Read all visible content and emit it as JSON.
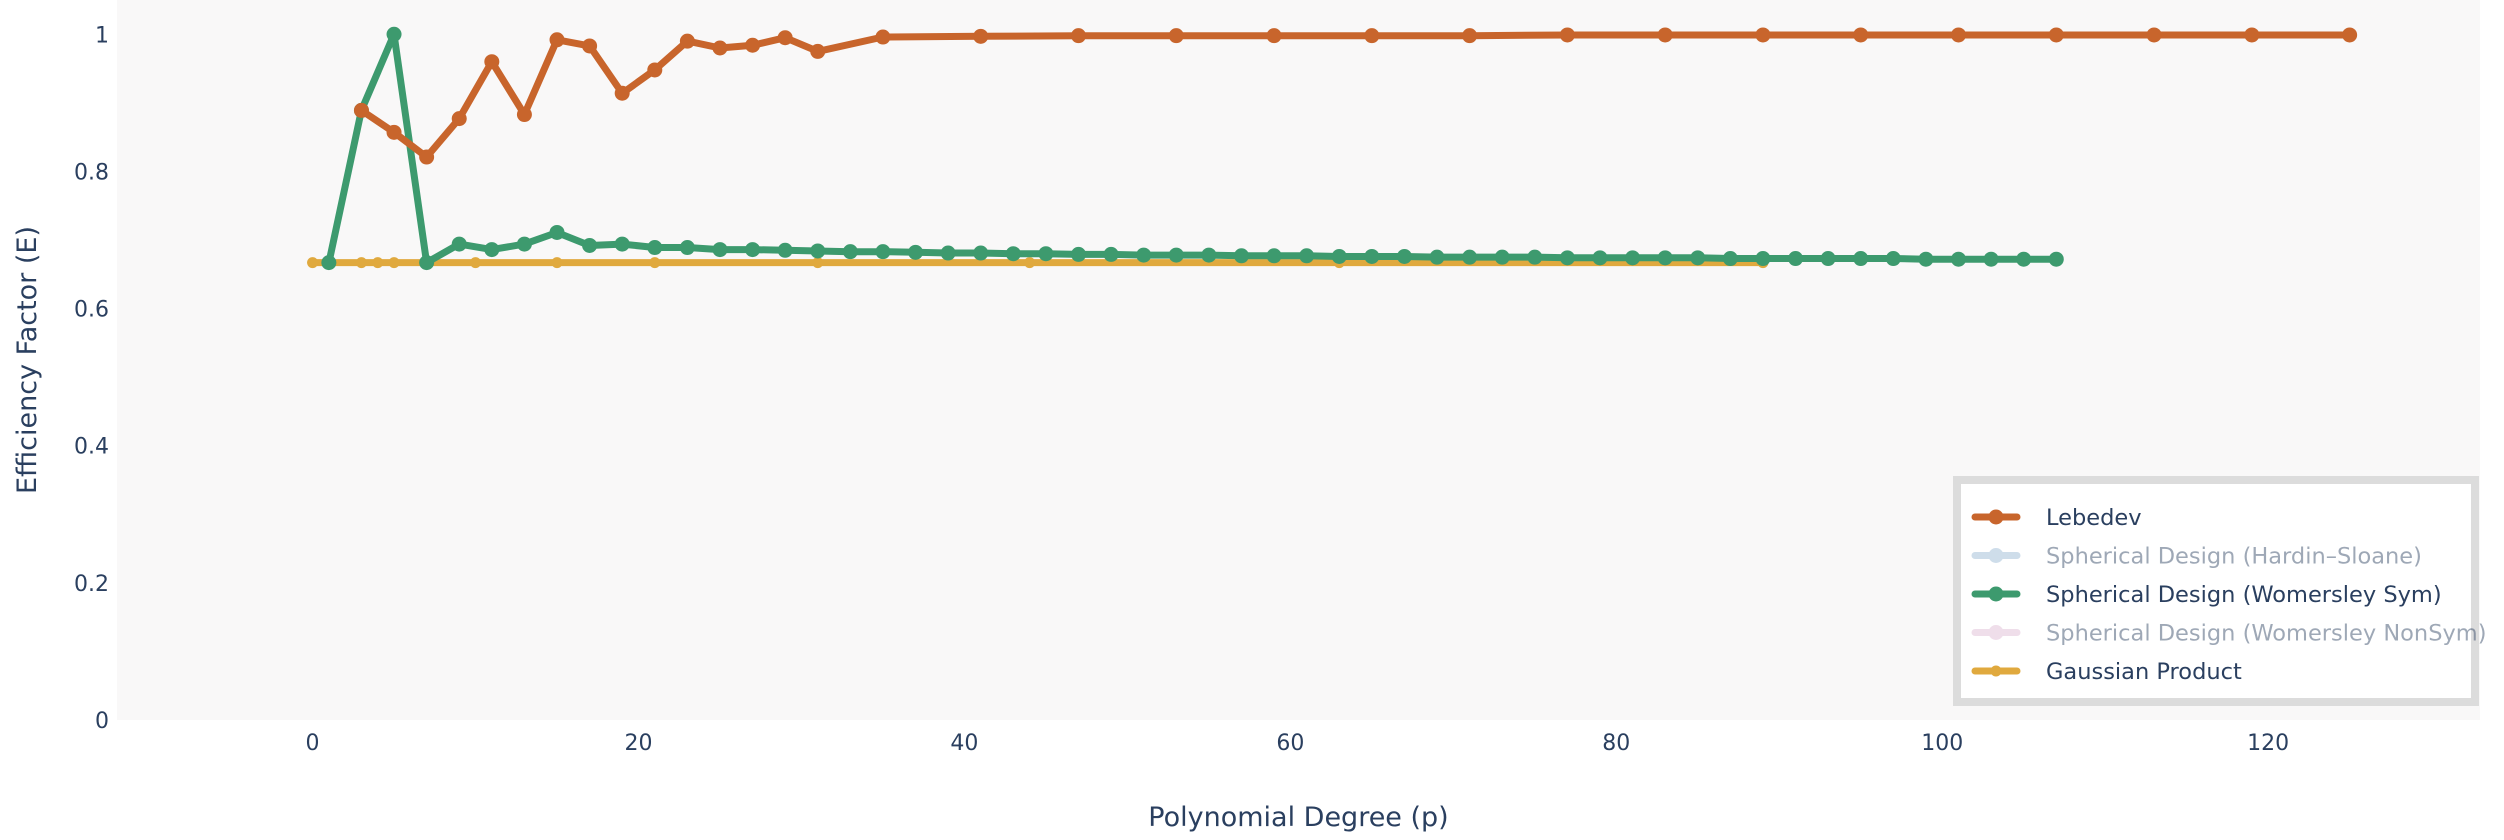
{
  "chart_data": {
    "type": "line",
    "xlabel": "Polynomial Degree (p)",
    "ylabel": "Efficiency Factor (E)",
    "xlim": [
      -12,
      133
    ],
    "ylim": [
      0,
      1.05
    ],
    "x_ticks": [
      0,
      20,
      40,
      60,
      80,
      100,
      120
    ],
    "x_tick_labels": [
      "0",
      "20",
      "40",
      "60",
      "80",
      "100",
      "120"
    ],
    "y_ticks": [
      0,
      0.2,
      0.4,
      0.6,
      0.8,
      1
    ],
    "y_tick_labels": [
      "0",
      "0.2",
      "0.4",
      "0.6",
      "0.8",
      "1"
    ],
    "grid": false,
    "legend_position": "bottom-right",
    "series": [
      {
        "name": "Lebedev",
        "color": "#c8652c",
        "visible": true,
        "x": [
          3,
          5,
          7,
          9,
          11,
          13,
          15,
          17,
          19,
          21,
          23,
          25,
          27,
          29,
          31,
          35,
          41,
          47,
          53,
          59,
          65,
          71,
          77,
          83,
          89,
          95,
          101,
          107,
          113,
          119,
          125
        ],
        "y": [
          0.889,
          0.857,
          0.821,
          0.877,
          0.96,
          0.883,
          0.992,
          0.983,
          0.914,
          0.948,
          0.99,
          0.98,
          0.984,
          0.995,
          0.975,
          0.996,
          0.997,
          0.998,
          0.998,
          0.998,
          0.998,
          0.998,
          0.999,
          0.999,
          0.999,
          0.999,
          0.999,
          0.999,
          0.999,
          0.999,
          0.999
        ]
      },
      {
        "name": "Spherical Design (Hardin–Sloane)",
        "color": "#93b5d2",
        "visible": false
      },
      {
        "name": "Spherical Design (Womersley Sym)",
        "color": "#3d9a6e",
        "visible": true,
        "x": [
          1,
          3,
          5,
          7,
          9,
          11,
          13,
          15,
          17,
          19,
          21,
          23,
          25,
          27,
          29,
          31,
          33,
          35,
          37,
          39,
          41,
          43,
          45,
          47,
          49,
          51,
          53,
          55,
          57,
          59,
          61,
          63,
          65,
          67,
          69,
          71,
          73,
          75,
          77,
          79,
          81,
          83,
          85,
          87,
          89,
          91,
          93,
          95,
          97,
          99,
          101,
          103,
          105,
          107
        ],
        "y": [
          0.667,
          0.889,
          1.0,
          0.667,
          0.694,
          0.686,
          0.694,
          0.711,
          0.692,
          0.694,
          0.689,
          0.689,
          0.686,
          0.686,
          0.685,
          0.684,
          0.683,
          0.683,
          0.682,
          0.681,
          0.681,
          0.68,
          0.68,
          0.679,
          0.679,
          0.678,
          0.678,
          0.678,
          0.677,
          0.677,
          0.677,
          0.676,
          0.676,
          0.676,
          0.675,
          0.675,
          0.675,
          0.675,
          0.674,
          0.674,
          0.674,
          0.674,
          0.674,
          0.673,
          0.673,
          0.673,
          0.673,
          0.673,
          0.673,
          0.672,
          0.672,
          0.672,
          0.672,
          0.672
        ]
      },
      {
        "name": "Spherical Design (Womersley NonSym)",
        "color": "#ddb7d2",
        "visible": false
      },
      {
        "name": "Gaussian Product",
        "color": "#e0a93e",
        "visible": true,
        "x": [
          0,
          1,
          3,
          4,
          5,
          7,
          10,
          15,
          21,
          31,
          44,
          63,
          89
        ],
        "y": [
          0.667,
          0.667,
          0.667,
          0.667,
          0.667,
          0.667,
          0.667,
          0.667,
          0.667,
          0.667,
          0.667,
          0.667,
          0.667
        ]
      }
    ]
  }
}
